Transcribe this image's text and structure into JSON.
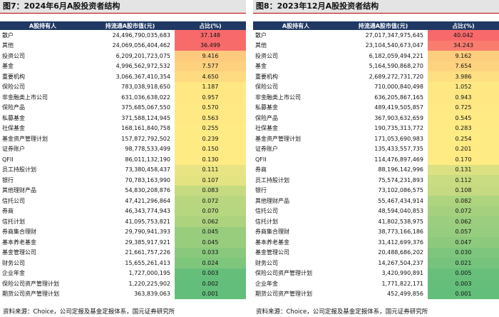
{
  "panels": [
    {
      "title": "图7：2024年6月A股投资者结构",
      "headers": [
        "A股持有人",
        "持流通A股市值(元)",
        "占比(%)"
      ],
      "rows": [
        [
          "散户",
          "24,496,790,035,683",
          "37.148"
        ],
        [
          "其他",
          "24,069,056,404,462",
          "36.499"
        ],
        [
          "投资公司",
          "6,209,201,723,075",
          "9.416"
        ],
        [
          "基金",
          "4,996,562,972,532",
          "7.577"
        ],
        [
          "重要机构",
          "3,066,367,410,354",
          "4.650"
        ],
        [
          "保险公司",
          "783,038,918,650",
          "1.187"
        ],
        [
          "非金融类上市公司",
          "631,036,638,022",
          "0.957"
        ],
        [
          "保险产品",
          "375,685,067,550",
          "0.570"
        ],
        [
          "私募基金",
          "371,588,124,945",
          "0.563"
        ],
        [
          "社保基金",
          "168,161,840,758",
          "0.255"
        ],
        [
          "基金资产管理计划",
          "157,872,792,502",
          "0.239"
        ],
        [
          "证券账户",
          "98,778,533,499",
          "0.150"
        ],
        [
          "QFII",
          "86,011,132,190",
          "0.130"
        ],
        [
          "员工持股计划",
          "73,380,458,437",
          "0.111"
        ],
        [
          "银行",
          "70,783,163,990",
          "0.107"
        ],
        [
          "其他理财产品",
          "54,830,208,876",
          "0.083"
        ],
        [
          "信托公司",
          "47,421,296,864",
          "0.072"
        ],
        [
          "券商",
          "46,343,774,943",
          "0.070"
        ],
        [
          "信托计划",
          "41,095,753,821",
          "0.062"
        ],
        [
          "券商集合理财",
          "29,790,941,393",
          "0.045"
        ],
        [
          "基本养老基金",
          "29,385,917,921",
          "0.045"
        ],
        [
          "基金管理公司",
          "21,661,757,226",
          "0.033"
        ],
        [
          "财务公司",
          "15,655,261,413",
          "0.024"
        ],
        [
          "企业年金",
          "1,727,000,195",
          "0.003"
        ],
        [
          "保险公司资产管理计划",
          "1,220,225,902",
          "0.002"
        ],
        [
          "期货公司资产管理计划",
          "363,839,063",
          "0.001"
        ]
      ],
      "source": "资料来源：Choice，公司定报及基金定报体系，国元证券研究所"
    },
    {
      "title": "图8：2023年12月A股投资者结构",
      "headers": [
        "A股持有人",
        "持流通A股市值(元)",
        "占比(%)"
      ],
      "rows": [
        [
          "散户",
          "27,017,347,975,645",
          "40.042"
        ],
        [
          "其他",
          "23,104,540,673,047",
          "34.243"
        ],
        [
          "投资公司",
          "6,182,059,494,221",
          "9.162"
        ],
        [
          "基金",
          "5,164,590,868,270",
          "7.654"
        ],
        [
          "重要机构",
          "2,689,272,731,720",
          "3.986"
        ],
        [
          "保险公司",
          "710,000,840,498",
          "1.052"
        ],
        [
          "非金融类上市公司",
          "636,205,867,165",
          "0.943"
        ],
        [
          "私募基金",
          "489,419,505,857",
          "0.725"
        ],
        [
          "保险产品",
          "367,903,632,659",
          "0.545"
        ],
        [
          "社保基金",
          "190,735,313,772",
          "0.283"
        ],
        [
          "基金资产管理计划",
          "171,053,690,983",
          "0.254"
        ],
        [
          "证券账户",
          "135,433,557,735",
          "0.201"
        ],
        [
          "QFII",
          "114,476,897,469",
          "0.170"
        ],
        [
          "券商",
          "88,196,142,996",
          "0.131"
        ],
        [
          "员工持股计划",
          "75,574,231,893",
          "0.112"
        ],
        [
          "银行",
          "73,102,086,575",
          "0.108"
        ],
        [
          "其他理财产品",
          "55,467,434,914",
          "0.082"
        ],
        [
          "信托公司",
          "48,594,040,853",
          "0.072"
        ],
        [
          "信托计划",
          "41,802,538,975",
          "0.062"
        ],
        [
          "券商集合理财",
          "38,773,166,186",
          "0.057"
        ],
        [
          "基本养老基金",
          "31,412,699,376",
          "0.047"
        ],
        [
          "基金管理公司",
          "20,488,686,202",
          "0.030"
        ],
        [
          "财务公司",
          "14,267,504,237",
          "0.021"
        ],
        [
          "保险公司资产管理计划",
          "3,420,990,891",
          "0.005"
        ],
        [
          "企业年金",
          "1,771,822,171",
          "0.003"
        ],
        [
          "期货公司资产管理计划",
          "452,499,856",
          "0.001"
        ]
      ],
      "source": "资料来源：Choice，公司定报及基金定报体系，国元证券研究所"
    }
  ]
}
